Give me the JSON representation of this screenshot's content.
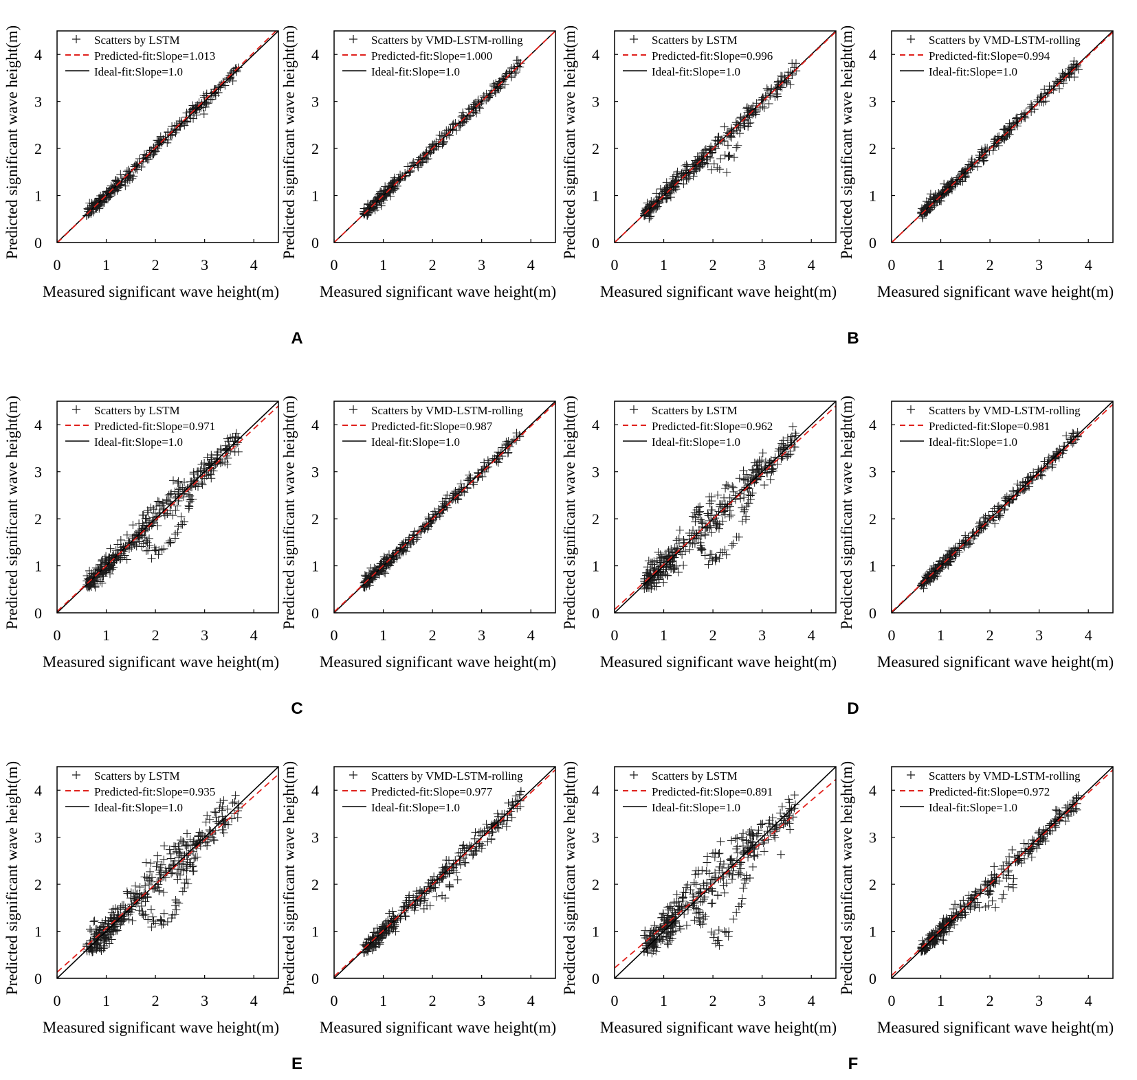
{
  "figure": {
    "panel_labels": [
      "A",
      "B",
      "C",
      "D",
      "E",
      "F"
    ]
  },
  "chart_data": [
    {
      "id": "A-left",
      "type": "scatter",
      "xlabel": "Measured significant wave height(m)",
      "ylabel": "Predicted significant wave height(m)",
      "xlim": [
        0,
        4.5
      ],
      "ylim": [
        0,
        4.5
      ],
      "xticks": [
        "0",
        "1",
        "2",
        "3",
        "4"
      ],
      "yticks": [
        "0",
        "1",
        "2",
        "3",
        "4"
      ],
      "grid": false,
      "legend_position": "top-left",
      "legend": [
        "Scatters by LSTM",
        "Predicted-fit:Slope=1.013",
        "Ideal-fit:Slope=1.0"
      ],
      "predicted_fit": {
        "slope": 1.013,
        "intercept": -0.01
      },
      "ideal_fit": {
        "slope": 1.0,
        "intercept": 0
      },
      "scatter_profile": {
        "x_range": [
          0.6,
          3.7
        ],
        "pattern": "tight"
      }
    },
    {
      "id": "A-right",
      "type": "scatter",
      "xlabel": "Measured significant wave height(m)",
      "ylabel": "Predicted significant wave height(m)",
      "xlim": [
        0,
        4.5
      ],
      "ylim": [
        0,
        4.5
      ],
      "xticks": [
        "0",
        "1",
        "2",
        "3",
        "4"
      ],
      "yticks": [
        "0",
        "1",
        "2",
        "3",
        "4"
      ],
      "grid": false,
      "legend_position": "top-left",
      "legend": [
        "Scatters by VMD-LSTM-rolling",
        "Predicted-fit:Slope=1.000",
        "Ideal-fit:Slope=1.0"
      ],
      "predicted_fit": {
        "slope": 1.0,
        "intercept": 0
      },
      "ideal_fit": {
        "slope": 1.0,
        "intercept": 0
      },
      "scatter_profile": {
        "x_range": [
          0.6,
          3.8
        ],
        "pattern": "tight"
      }
    },
    {
      "id": "B-left",
      "type": "scatter",
      "xlabel": "Measured significant wave height(m)",
      "ylabel": "Predicted significant wave height(m)",
      "xlim": [
        0,
        4.5
      ],
      "ylim": [
        0,
        4.5
      ],
      "xticks": [
        "0",
        "1",
        "2",
        "3",
        "4"
      ],
      "yticks": [
        "0",
        "1",
        "2",
        "3",
        "4"
      ],
      "grid": false,
      "legend_position": "top-left",
      "legend": [
        "Scatters by LSTM",
        "Predicted-fit:Slope=0.996",
        "Ideal-fit:Slope=1.0"
      ],
      "predicted_fit": {
        "slope": 0.996,
        "intercept": 0.0
      },
      "ideal_fit": {
        "slope": 1.0,
        "intercept": 0
      },
      "scatter_profile": {
        "x_range": [
          0.6,
          3.7
        ],
        "pattern": "moderate"
      }
    },
    {
      "id": "B-right",
      "type": "scatter",
      "xlabel": "Measured significant wave height(m)",
      "ylabel": "Predicted significant wave height(m)",
      "xlim": [
        0,
        4.5
      ],
      "ylim": [
        0,
        4.5
      ],
      "xticks": [
        "0",
        "1",
        "2",
        "3",
        "4"
      ],
      "yticks": [
        "0",
        "1",
        "2",
        "3",
        "4"
      ],
      "grid": false,
      "legend_position": "top-left",
      "legend": [
        "Scatters by VMD-LSTM-rolling",
        "Predicted-fit:Slope=0.994",
        "Ideal-fit:Slope=1.0"
      ],
      "predicted_fit": {
        "slope": 0.994,
        "intercept": 0.0
      },
      "ideal_fit": {
        "slope": 1.0,
        "intercept": 0
      },
      "scatter_profile": {
        "x_range": [
          0.6,
          3.8
        ],
        "pattern": "tight"
      }
    },
    {
      "id": "C-left",
      "type": "scatter",
      "xlabel": "Measured significant wave height(m)",
      "ylabel": "Predicted significant wave height(m)",
      "xlim": [
        0,
        4.5
      ],
      "ylim": [
        0,
        4.5
      ],
      "xticks": [
        "0",
        "1",
        "2",
        "3",
        "4"
      ],
      "yticks": [
        "0",
        "1",
        "2",
        "3",
        "4"
      ],
      "grid": false,
      "legend_position": "top-left",
      "legend": [
        "Scatters by LSTM",
        "Predicted-fit:Slope=0.971",
        "Ideal-fit:Slope=1.0"
      ],
      "predicted_fit": {
        "slope": 0.971,
        "intercept": 0.03
      },
      "ideal_fit": {
        "slope": 1.0,
        "intercept": 0
      },
      "scatter_profile": {
        "x_range": [
          0.6,
          3.7
        ],
        "pattern": "loop"
      }
    },
    {
      "id": "C-right",
      "type": "scatter",
      "xlabel": "Measured significant wave height(m)",
      "ylabel": "Predicted significant wave height(m)",
      "xlim": [
        0,
        4.5
      ],
      "ylim": [
        0,
        4.5
      ],
      "xticks": [
        "0",
        "1",
        "2",
        "3",
        "4"
      ],
      "yticks": [
        "0",
        "1",
        "2",
        "3",
        "4"
      ],
      "grid": false,
      "legend_position": "top-left",
      "legend": [
        "Scatters by VMD-LSTM-rolling",
        "Predicted-fit:Slope=0.987",
        "Ideal-fit:Slope=1.0"
      ],
      "predicted_fit": {
        "slope": 0.987,
        "intercept": 0.02
      },
      "ideal_fit": {
        "slope": 1.0,
        "intercept": 0
      },
      "scatter_profile": {
        "x_range": [
          0.6,
          3.8
        ],
        "pattern": "tight"
      }
    },
    {
      "id": "D-left",
      "type": "scatter",
      "xlabel": "Measured significant wave height(m)",
      "ylabel": "Predicted significant wave height(m)",
      "xlim": [
        0,
        4.5
      ],
      "ylim": [
        0,
        4.5
      ],
      "xticks": [
        "0",
        "1",
        "2",
        "3",
        "4"
      ],
      "yticks": [
        "0",
        "1",
        "2",
        "3",
        "4"
      ],
      "grid": false,
      "legend_position": "top-left",
      "legend": [
        "Scatters by LSTM",
        "Predicted-fit:Slope=0.962",
        "Ideal-fit:Slope=1.0"
      ],
      "predicted_fit": {
        "slope": 0.962,
        "intercept": 0.07
      },
      "ideal_fit": {
        "slope": 1.0,
        "intercept": 0
      },
      "scatter_profile": {
        "x_range": [
          0.6,
          3.7
        ],
        "pattern": "wide-loop"
      }
    },
    {
      "id": "D-right",
      "type": "scatter",
      "xlabel": "Measured significant wave height(m)",
      "ylabel": "Predicted significant wave height(m)",
      "xlim": [
        0,
        4.5
      ],
      "ylim": [
        0,
        4.5
      ],
      "xticks": [
        "0",
        "1",
        "2",
        "3",
        "4"
      ],
      "yticks": [
        "0",
        "1",
        "2",
        "3",
        "4"
      ],
      "grid": false,
      "legend_position": "top-left",
      "legend": [
        "Scatters by VMD-LSTM-rolling",
        "Predicted-fit:Slope=0.981",
        "Ideal-fit:Slope=1.0"
      ],
      "predicted_fit": {
        "slope": 0.981,
        "intercept": 0.02
      },
      "ideal_fit": {
        "slope": 1.0,
        "intercept": 0
      },
      "scatter_profile": {
        "x_range": [
          0.6,
          3.8
        ],
        "pattern": "tight"
      }
    },
    {
      "id": "E-left",
      "type": "scatter",
      "xlabel": "Measured significant wave height(m)",
      "ylabel": "Predicted significant wave height(m)",
      "xlim": [
        0,
        4.5
      ],
      "ylim": [
        0,
        4.5
      ],
      "xticks": [
        "0",
        "1",
        "2",
        "3",
        "4"
      ],
      "yticks": [
        "0",
        "1",
        "2",
        "3",
        "4"
      ],
      "grid": false,
      "legend_position": "top-left",
      "legend": [
        "Scatters by LSTM",
        "Predicted-fit:Slope=0.935",
        "Ideal-fit:Slope=1.0"
      ],
      "predicted_fit": {
        "slope": 0.935,
        "intercept": 0.13
      },
      "ideal_fit": {
        "slope": 1.0,
        "intercept": 0
      },
      "scatter_profile": {
        "x_range": [
          0.6,
          3.7
        ],
        "pattern": "wide-loop"
      }
    },
    {
      "id": "E-right",
      "type": "scatter",
      "xlabel": "Measured significant wave height(m)",
      "ylabel": "Predicted significant wave height(m)",
      "xlim": [
        0,
        4.5
      ],
      "ylim": [
        0,
        4.5
      ],
      "xticks": [
        "0",
        "1",
        "2",
        "3",
        "4"
      ],
      "yticks": [
        "0",
        "1",
        "2",
        "3",
        "4"
      ],
      "grid": false,
      "legend_position": "top-left",
      "legend": [
        "Scatters by VMD-LSTM-rolling",
        "Predicted-fit:Slope=0.977",
        "Ideal-fit:Slope=1.0"
      ],
      "predicted_fit": {
        "slope": 0.977,
        "intercept": 0.04
      },
      "ideal_fit": {
        "slope": 1.0,
        "intercept": 0
      },
      "scatter_profile": {
        "x_range": [
          0.6,
          3.8
        ],
        "pattern": "moderate"
      }
    },
    {
      "id": "F-left",
      "type": "scatter",
      "xlabel": "Measured significant wave height(m)",
      "ylabel": "Predicted significant wave height(m)",
      "xlim": [
        0,
        4.5
      ],
      "ylim": [
        0,
        4.5
      ],
      "xticks": [
        "0",
        "1",
        "2",
        "3",
        "4"
      ],
      "yticks": [
        "0",
        "1",
        "2",
        "3",
        "4"
      ],
      "grid": false,
      "legend_position": "top-left",
      "legend": [
        "Scatters by LSTM",
        "Predicted-fit:Slope=0.891",
        "Ideal-fit:Slope=1.0"
      ],
      "predicted_fit": {
        "slope": 0.891,
        "intercept": 0.22
      },
      "ideal_fit": {
        "slope": 1.0,
        "intercept": 0
      },
      "scatter_profile": {
        "x_range": [
          0.6,
          3.7
        ],
        "pattern": "very-wide-loop"
      }
    },
    {
      "id": "F-right",
      "type": "scatter",
      "xlabel": "Measured significant wave height(m)",
      "ylabel": "Predicted significant wave height(m)",
      "xlim": [
        0,
        4.5
      ],
      "ylim": [
        0,
        4.5
      ],
      "xticks": [
        "0",
        "1",
        "2",
        "3",
        "4"
      ],
      "yticks": [
        "0",
        "1",
        "2",
        "3",
        "4"
      ],
      "grid": false,
      "legend_position": "top-left",
      "legend": [
        "Scatters by VMD-LSTM-rolling",
        "Predicted-fit:Slope=0.972",
        "Ideal-fit:Slope=1.0"
      ],
      "predicted_fit": {
        "slope": 0.972,
        "intercept": 0.06
      },
      "ideal_fit": {
        "slope": 1.0,
        "intercept": 0
      },
      "scatter_profile": {
        "x_range": [
          0.6,
          3.8
        ],
        "pattern": "moderate"
      }
    }
  ],
  "colors": {
    "axis": "#000000",
    "marker": "#1a1a1a",
    "predicted_fit": "#e0201b",
    "ideal_fit": "#000000"
  }
}
